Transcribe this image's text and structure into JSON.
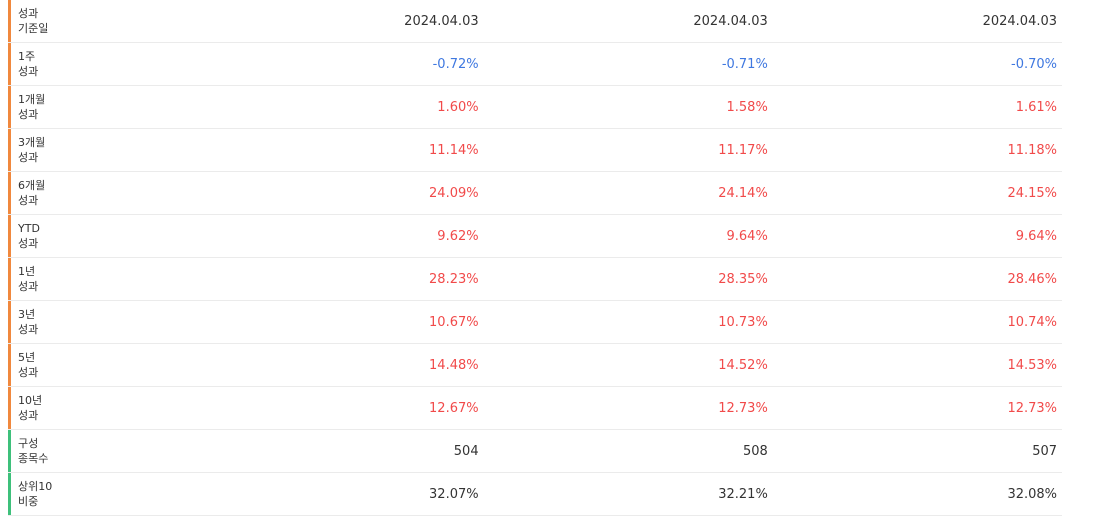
{
  "rows": [
    {
      "label": [
        "성과",
        "기준일"
      ],
      "values": [
        "2024.04.03",
        "2024.04.03",
        "2024.04.03"
      ],
      "tone": "neutral",
      "accent": "orange"
    },
    {
      "label": [
        "1주",
        "성과"
      ],
      "values": [
        "-0.72%",
        "-0.71%",
        "-0.70%"
      ],
      "tone": "neg",
      "accent": "orange"
    },
    {
      "label": [
        "1개월",
        "성과"
      ],
      "values": [
        "1.60%",
        "1.58%",
        "1.61%"
      ],
      "tone": "pos",
      "accent": "orange"
    },
    {
      "label": [
        "3개월",
        "성과"
      ],
      "values": [
        "11.14%",
        "11.17%",
        "11.18%"
      ],
      "tone": "pos",
      "accent": "orange"
    },
    {
      "label": [
        "6개월",
        "성과"
      ],
      "values": [
        "24.09%",
        "24.14%",
        "24.15%"
      ],
      "tone": "pos",
      "accent": "orange"
    },
    {
      "label": [
        "YTD",
        "성과"
      ],
      "values": [
        "9.62%",
        "9.64%",
        "9.64%"
      ],
      "tone": "pos",
      "accent": "orange"
    },
    {
      "label": [
        "1년",
        "성과"
      ],
      "values": [
        "28.23%",
        "28.35%",
        "28.46%"
      ],
      "tone": "pos",
      "accent": "orange"
    },
    {
      "label": [
        "3년",
        "성과"
      ],
      "values": [
        "10.67%",
        "10.73%",
        "10.74%"
      ],
      "tone": "pos",
      "accent": "orange"
    },
    {
      "label": [
        "5년",
        "성과"
      ],
      "values": [
        "14.48%",
        "14.52%",
        "14.53%"
      ],
      "tone": "pos",
      "accent": "orange"
    },
    {
      "label": [
        "10년",
        "성과"
      ],
      "values": [
        "12.67%",
        "12.73%",
        "12.73%"
      ],
      "tone": "pos",
      "accent": "orange"
    },
    {
      "label": [
        "구성",
        "종목수"
      ],
      "values": [
        "504",
        "508",
        "507"
      ],
      "tone": "neutral",
      "accent": "green"
    },
    {
      "label": [
        "상위10",
        "비중"
      ],
      "values": [
        "32.07%",
        "32.21%",
        "32.08%"
      ],
      "tone": "neutral",
      "accent": "green"
    }
  ],
  "colors": {
    "accent_orange": "#f0883e",
    "accent_green": "#3ec07b",
    "negative": "#3f78e0",
    "positive": "#f14a4a",
    "text": "#333333"
  }
}
